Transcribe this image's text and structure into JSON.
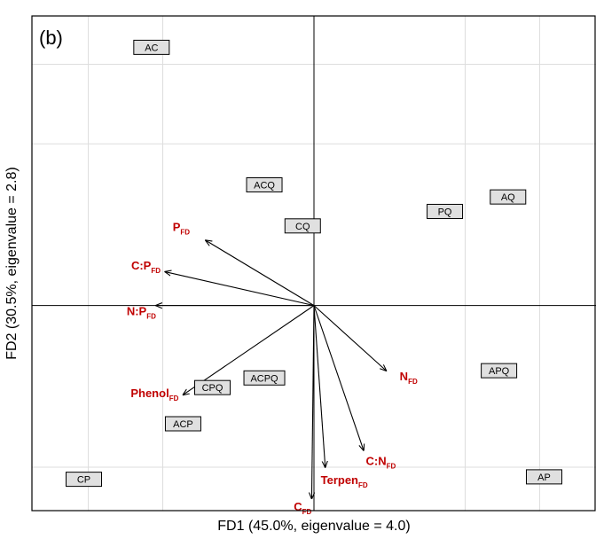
{
  "chart_data": {
    "type": "scatter",
    "subtype": "pca-biplot",
    "panel_label": "(b)",
    "xlabel": "FD1 (45.0%, eigenvalue = 4.0)",
    "ylabel": "FD2 (30.5%, eigenvalue = 2.8)",
    "xlim": [
      -1.25,
      1.25
    ],
    "ylim": [
      -0.85,
      1.2
    ],
    "grid": true,
    "grid_x": [
      -1.0,
      -0.67,
      0.67,
      1.0
    ],
    "grid_y": [
      -0.67,
      0.67,
      1.0
    ],
    "zero_lines": true,
    "colors": {
      "arrow": "#000000",
      "trait_label": "#c00000",
      "box_fill": "#e0e0e0",
      "grid": "#dddddd"
    },
    "sites": [
      {
        "label": "AC",
        "x": -0.72,
        "y": 1.07
      },
      {
        "label": "ACQ",
        "x": -0.22,
        "y": 0.5
      },
      {
        "label": "CQ",
        "x": -0.05,
        "y": 0.33
      },
      {
        "label": "PQ",
        "x": 0.58,
        "y": 0.39
      },
      {
        "label": "AQ",
        "x": 0.86,
        "y": 0.45
      },
      {
        "label": "APQ",
        "x": 0.82,
        "y": -0.27
      },
      {
        "label": "ACPQ",
        "x": -0.22,
        "y": -0.3
      },
      {
        "label": "CPQ",
        "x": -0.45,
        "y": -0.34
      },
      {
        "label": "ACP",
        "x": -0.58,
        "y": -0.49
      },
      {
        "label": "CP",
        "x": -1.02,
        "y": -0.72
      },
      {
        "label": "AP",
        "x": 1.02,
        "y": -0.71
      }
    ],
    "traits": [
      {
        "label": "P",
        "sub": "FD",
        "x": -0.48,
        "y": 0.27,
        "lx": -0.55,
        "ly": 0.31,
        "anchor": "end"
      },
      {
        "label": "C:P",
        "sub": "FD",
        "x": -0.66,
        "y": 0.14,
        "lx": -0.68,
        "ly": 0.15,
        "anchor": "end"
      },
      {
        "label": "N:P",
        "sub": "FD",
        "x": -0.7,
        "y": 0.0,
        "lx": -0.7,
        "ly": -0.04,
        "anchor": "end"
      },
      {
        "label": "Phenol",
        "sub": "FD",
        "x": -0.58,
        "y": -0.37,
        "lx": -0.6,
        "ly": -0.38,
        "anchor": "end"
      },
      {
        "label": "N",
        "sub": "FD",
        "x": 0.32,
        "y": -0.27,
        "lx": 0.38,
        "ly": -0.31,
        "anchor": "start"
      },
      {
        "label": "C:N",
        "sub": "FD",
        "x": 0.22,
        "y": -0.6,
        "lx": 0.23,
        "ly": -0.66,
        "anchor": "start"
      },
      {
        "label": "Terpen",
        "sub": "FD",
        "x": 0.05,
        "y": -0.67,
        "lx": 0.03,
        "ly": -0.74,
        "anchor": "start"
      },
      {
        "label": "C",
        "sub": "FD",
        "x": -0.01,
        "y": -0.8,
        "lx": -0.05,
        "ly": -0.85,
        "anchor": "middle"
      }
    ]
  }
}
